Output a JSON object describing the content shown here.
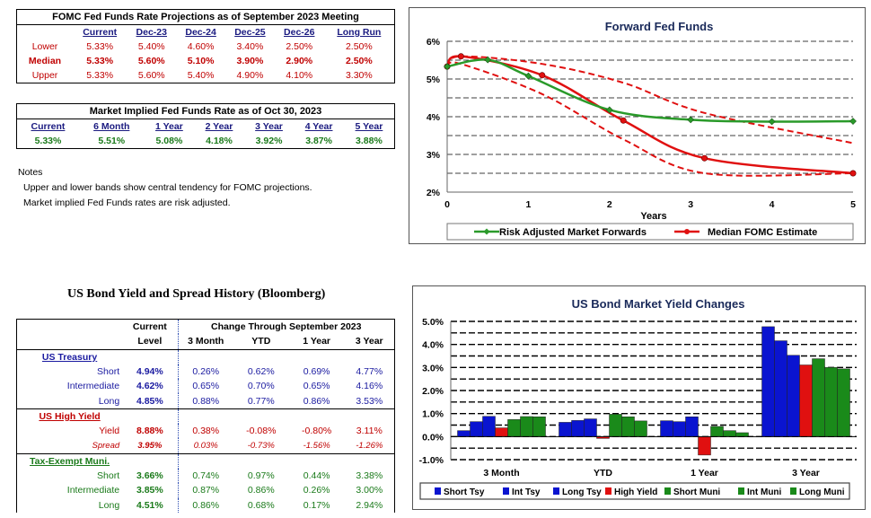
{
  "fomc": {
    "title": "FOMC Fed Funds Rate Projections as of September 2023 Meeting",
    "headers": [
      "Current",
      "Dec-23",
      "Dec-24",
      "Dec-25",
      "Dec-26",
      "Long Run"
    ],
    "rows": [
      {
        "label": "Lower",
        "values": [
          "5.33%",
          "5.40%",
          "4.60%",
          "3.40%",
          "2.50%",
          "2.50%"
        ]
      },
      {
        "label": "Median",
        "values": [
          "5.33%",
          "5.60%",
          "5.10%",
          "3.90%",
          "2.90%",
          "2.50%"
        ]
      },
      {
        "label": "Upper",
        "values": [
          "5.33%",
          "5.60%",
          "5.40%",
          "4.90%",
          "4.10%",
          "3.30%"
        ]
      }
    ]
  },
  "market": {
    "title": "Market Implied Fed Funds Rate as of Oct 30, 2023",
    "headers": [
      "Current",
      "6 Month",
      "1 Year",
      "2 Year",
      "3 Year",
      "4 Year",
      "5 Year"
    ],
    "values": [
      "5.33%",
      "5.51%",
      "5.08%",
      "4.18%",
      "3.92%",
      "3.87%",
      "3.88%"
    ]
  },
  "notes": {
    "title": "Notes",
    "lines": [
      "Upper and lower bands show central tendency for FOMC projections.",
      "Market implied Fed Funds rates are risk adjusted."
    ]
  },
  "bond": {
    "title": "US Bond Yield and Spread History (Bloomberg)",
    "hdr_current": "Current",
    "hdr_level": "Level",
    "hdr_change": "Change Through September 2023",
    "hdr_cols": [
      "3 Month",
      "YTD",
      "1 Year",
      "3 Year"
    ],
    "groups": [
      {
        "name": "US Treasury",
        "rows": [
          {
            "label": "Short",
            "level": "4.94%",
            "changes": [
              "0.26%",
              "0.62%",
              "0.69%",
              "4.77%"
            ]
          },
          {
            "label": "Intermediate",
            "level": "4.62%",
            "changes": [
              "0.65%",
              "0.70%",
              "0.65%",
              "4.16%"
            ]
          },
          {
            "label": "Long",
            "level": "4.85%",
            "changes": [
              "0.88%",
              "0.77%",
              "0.86%",
              "3.53%"
            ]
          }
        ]
      },
      {
        "name": "US High Yield",
        "rows": [
          {
            "label": "Yield",
            "level": "8.88%",
            "changes": [
              "0.38%",
              "-0.08%",
              "-0.80%",
              "3.11%"
            ]
          },
          {
            "label": "Spread",
            "level": "3.95%",
            "changes": [
              "0.03%",
              "-0.73%",
              "-1.56%",
              "-1.26%"
            ]
          }
        ]
      },
      {
        "name": "Tax-Exempt Muni.",
        "rows": [
          {
            "label": "Short",
            "level": "3.66%",
            "changes": [
              "0.74%",
              "0.97%",
              "0.44%",
              "3.38%"
            ]
          },
          {
            "label": "Intermediate",
            "level": "3.85%",
            "changes": [
              "0.87%",
              "0.86%",
              "0.26%",
              "3.00%"
            ]
          },
          {
            "label": "Long",
            "level": "4.51%",
            "changes": [
              "0.86%",
              "0.68%",
              "0.17%",
              "2.94%"
            ]
          }
        ]
      }
    ]
  },
  "chart_data": [
    {
      "type": "line",
      "title": "Forward Fed Funds",
      "xlabel": "Years",
      "ylabel": "",
      "xlim": [
        0,
        5
      ],
      "ylim": [
        2,
        6
      ],
      "xticks": [
        "0",
        "1",
        "2",
        "3",
        "4",
        "5"
      ],
      "yticks": [
        "2%",
        "3%",
        "4%",
        "5%",
        "6%"
      ],
      "grid": "dashed horizontal",
      "legend": "bottom",
      "series": [
        {
          "name": "Risk Adjusted Market Forwards",
          "color": "#2a9a2a",
          "x": [
            0,
            0.5,
            1,
            2,
            3,
            4,
            5
          ],
          "y": [
            5.33,
            5.51,
            5.08,
            4.18,
            3.92,
            3.87,
            3.88
          ]
        },
        {
          "name": "Median FOMC Estimate",
          "color": "#e01010",
          "x": [
            0,
            0.17,
            1.17,
            2.17,
            3.17,
            5
          ],
          "y": [
            5.33,
            5.6,
            5.1,
            3.9,
            2.9,
            2.5
          ]
        },
        {
          "name": "",
          "style": "dashed",
          "color": "#e01010",
          "x": [
            0,
            0.17,
            1.17,
            2.17,
            3.17,
            5
          ],
          "y": [
            5.33,
            5.6,
            5.4,
            4.9,
            4.1,
            3.3
          ]
        },
        {
          "name": "",
          "style": "dashed",
          "color": "#e01010",
          "x": [
            0,
            0.17,
            1.17,
            2.17,
            3.17,
            5
          ],
          "y": [
            5.33,
            5.4,
            4.6,
            3.4,
            2.5,
            2.5
          ]
        }
      ]
    },
    {
      "type": "bar",
      "title": "US Bond Market Yield Changes",
      "categories": [
        "3 Month",
        "YTD",
        "1 Year",
        "3 Year"
      ],
      "ylim": [
        -1.0,
        5.0
      ],
      "yticks": [
        "-1.0%",
        "0.0%",
        "1.0%",
        "2.0%",
        "3.0%",
        "4.0%",
        "5.0%"
      ],
      "grid": "dashed horizontal",
      "legend": "bottom",
      "series": [
        {
          "name": "Short Tsy",
          "color": "#0a14d0",
          "values": [
            0.26,
            0.62,
            0.69,
            4.77
          ]
        },
        {
          "name": "Int Tsy",
          "color": "#0a14d0",
          "values": [
            0.65,
            0.7,
            0.65,
            4.16
          ]
        },
        {
          "name": "Long Tsy",
          "color": "#0a14d0",
          "values": [
            0.88,
            0.77,
            0.86,
            3.53
          ]
        },
        {
          "name": "High Yield",
          "color": "#e01010",
          "values": [
            0.38,
            -0.08,
            -0.8,
            3.11
          ]
        },
        {
          "name": "Short Muni",
          "color": "#1a8a1a",
          "values": [
            0.74,
            0.97,
            0.44,
            3.38
          ]
        },
        {
          "name": "Int Muni",
          "color": "#1a8a1a",
          "values": [
            0.87,
            0.86,
            0.26,
            3.0
          ]
        },
        {
          "name": "Long Muni",
          "color": "#1a8a1a",
          "values": [
            0.86,
            0.68,
            0.17,
            2.94
          ]
        }
      ]
    }
  ]
}
